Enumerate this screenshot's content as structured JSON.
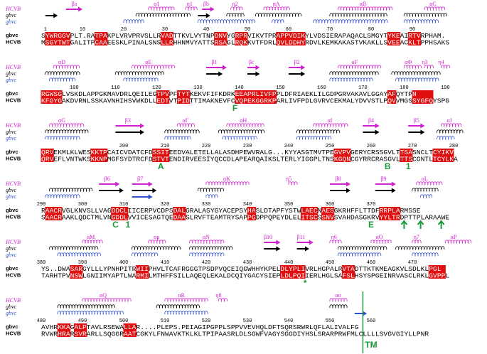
{
  "blocks": [
    {
      "labels": [
        "βa",
        "α1",
        "η1",
        "βb",
        "η2",
        "αA",
        "αB",
        "αC"
      ],
      "tracks": [
        "HCVB",
        "gbvc",
        "gbvc"
      ],
      "ruler": [
        1,
        10,
        20,
        30,
        40,
        50,
        60,
        70,
        80,
        90
      ],
      "rows": [
        {
          "name": "gbvc",
          "seq": "SYWRGGVPLT.RATPAKPLVRVPRVSLLRVADTTKVLVYTNPDNVYGRPRVIKVTPRAPPVDIKYLVDSIERAPAQACLSMGYTYKEAIRTVRPHAM."
        },
        {
          "name": "HCVB",
          "seq": "MSGYTWTGALITPCAAEESKLPINALSNSLLRHHNMVYATTSRSAGLRQKKVTFDRLQVLDDHYRDVLKEMKAKASTVKAKLLSVEEACKLTPPHSAKS"
        }
      ]
    },
    {
      "labels": [
        "αD",
        "αE",
        "β1",
        "βc",
        "β2",
        "αF",
        "αΦ",
        "η3",
        "η4"
      ],
      "tracks": [
        "HCVB",
        "gbvc",
        "gbvc"
      ],
      "ruler": [
        100,
        110,
        120,
        130,
        140,
        150,
        160,
        170,
        180,
        190
      ],
      "rows": [
        {
          "name": "gbvc",
          "seq": "RGWSGLVSKDLAPPGKMAVDRLQEILEGTPVPFTYTKEKVFIFKDRKEEAPRLIVFPPLDFRIAEKLILGDPGRVAKAVLGGAYAFQYTPN"
        },
        {
          "name": "HCVB",
          "seq": "KFGYGAKDVRNLSSKAVNHIHSVWKDLLEDTVTPIDTTIMAKNEVFCVQPEKGGRKPARLIVFPDLGVRVCEKMALYDVVSTLPQVVMGSSYGFQYSPG"
        }
      ]
    },
    {
      "labels": [
        "αG",
        "β3",
        "αΓ",
        "αH",
        "αI",
        "β4",
        "β5",
        "αJ"
      ],
      "tracks": [
        "HCVB",
        "gbvc",
        "gbvc"
      ],
      "ruler": [
        200,
        210,
        220,
        230,
        240,
        250,
        260,
        270,
        280
      ],
      "rows": [
        {
          "name": "gbvc",
          "seq": "QRVEKMLKLWESKKTPCAICVDATCFDSSITEEDVALETELLALASDHPEWVRALG...KYYASGTMVTPEGVPVGERYCRSSGVLTTSASNCLTCYIKV"
        },
        {
          "name": "HCVB",
          "seq": "QRVEFLVNTWKSKKNPMGFSYDTRCFDSTVTENDIRVEESIYQCCDLAPEARQAIKSLTERLYIGGPLTNSKGQNCGYRRCRASGVLTTSCGNTLTCYLKA"
        }
      ]
    },
    {
      "labels": [
        "β6",
        "β7",
        "αK",
        "η5",
        "β8",
        "β9",
        "αL"
      ],
      "tracks": [
        "HCVB",
        "gbvc",
        "gbvc"
      ],
      "ruler": [
        290,
        300,
        310,
        320,
        330,
        340,
        350,
        360,
        370
      ],
      "rows": [
        {
          "name": "gbvc",
          "seq": "RAACRVGLKNVSLLVAGDDCLIICERPVCDPSDALGRALASYGYACEPSYHASLDTAPFYSTWLAECNAESGKRHFFLTTDFRRPLARMSSE"
        },
        {
          "name": "HCVB",
          "seq": "SAACRAAKLQDCTMLVNGDDLVVICESAGTQEDAASLRVFTEAMTRYSAPPGDPPQPEYDLELITSCSSNVSVAHDASGKRVYYLTRDPTTPLARAAWE"
        }
      ]
    },
    {
      "labels": [
        "αM",
        "αμ",
        "αN",
        "β10",
        "β11",
        "η6",
        "αO",
        "η7",
        "αP"
      ],
      "tracks": [
        "HCVB",
        "gbvc",
        "gbvc"
      ],
      "ruler": [
        380,
        390,
        400,
        410,
        420,
        430,
        440,
        450,
        460,
        470
      ],
      "rows": [
        {
          "name": "gbvc",
          "seq": "YS..DWASARGYLLLYPNHPITRWIIPHVLTCAFRGGGTPSDPVQCEIQGWHHYKPELDLYPLIVRLHGPALRVTADTTKTKMEAGKVLSDLKLPGL"
        },
        {
          "name": "HCVB",
          "seq": "TARHTPVNSWLGNIIMYAPTLWARMILMTHFFSILLAQEQLEKALDCQIYGACYSIEPLDLPQIIERLHGLSAFSLHSYSPGEINRVASCLRKLGVPPL"
        }
      ]
    },
    {
      "labels": [
        "αQ",
        "αR",
        "η8",
        "ασ"
      ],
      "tracks": [
        "HCVB",
        "gbvc",
        "gbvc"
      ],
      "ruler": [
        480,
        490,
        500,
        510,
        520,
        530,
        540,
        550,
        560
      ],
      "rows": [
        {
          "name": "gbvc",
          "seq": "AVHRKKAGALPTAVLRSEWALLAR....PLEPS.PEIAGIPGPPLSPPVVEVHQLDFTSQRSRWRLQFLALIVALFG"
        },
        {
          "name": "HCVB",
          "seq": "RVWRHRARSVRARLLSQGGRAATCGKYLFNWAVKTKLKLTPIPAASRLDLSGWFVAGYSGGDIYHSLSRARPRWFMLCLLLLSVGVGIYLLPNR"
        }
      ]
    }
  ],
  "annotations": [
    "F",
    "A",
    "B",
    "1",
    "C",
    "1",
    "E",
    "*",
    "TM"
  ]
}
